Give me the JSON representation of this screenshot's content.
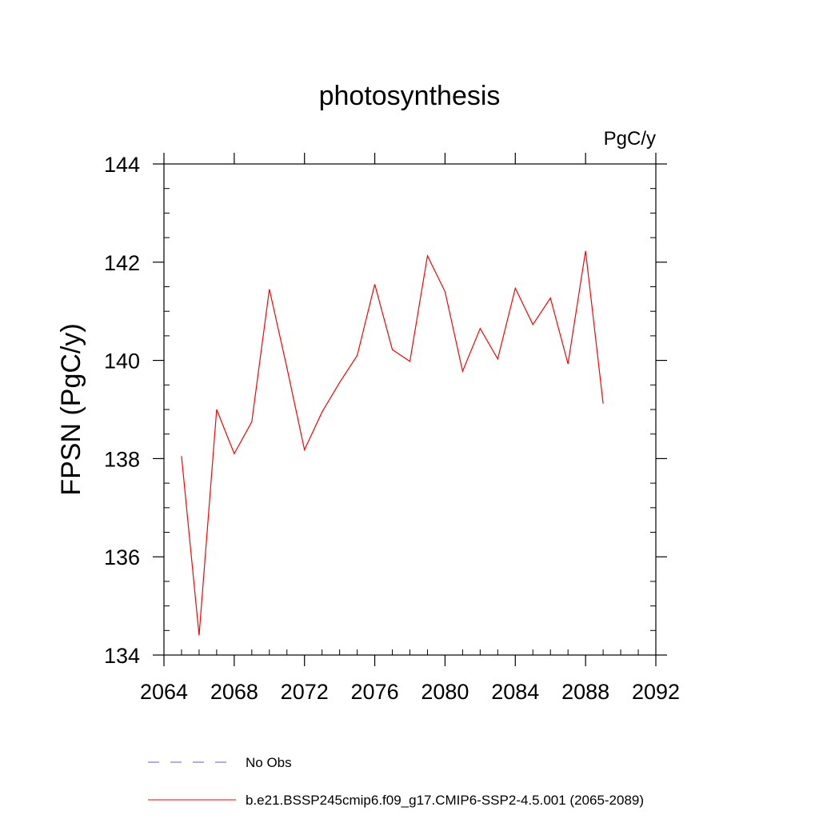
{
  "chart_data": {
    "type": "line",
    "title": "photosynthesis",
    "units_label": "PgC/y",
    "xlabel": "",
    "ylabel": "FPSN  (PgC/y)",
    "xlim": [
      2064,
      2092
    ],
    "ylim": [
      134,
      144
    ],
    "x_ticks": [
      "2064",
      "2068",
      "2072",
      "2076",
      "2080",
      "2084",
      "2088",
      "2092"
    ],
    "y_ticks": [
      "134",
      "136",
      "138",
      "140",
      "142",
      "144"
    ],
    "x": [
      2065,
      2066,
      2067,
      2068,
      2069,
      2070,
      2071,
      2072,
      2073,
      2074,
      2075,
      2076,
      2077,
      2078,
      2079,
      2080,
      2081,
      2082,
      2083,
      2084,
      2085,
      2086,
      2087,
      2088,
      2089
    ],
    "series": [
      {
        "name": "b.e21.BSSP245cmip6.f09_g17.CMIP6-SSP2-4.5.001 (2065-2089)",
        "color": "#ff0000",
        "values": [
          138.05,
          134.4,
          139.0,
          138.1,
          138.75,
          141.45,
          139.85,
          138.18,
          138.95,
          139.55,
          140.1,
          141.55,
          140.22,
          139.98,
          142.13,
          141.4,
          139.78,
          140.65,
          140.03,
          141.47,
          140.73,
          141.27,
          139.93,
          142.23,
          139.12
        ]
      }
    ],
    "legend": [
      {
        "label": "No Obs",
        "color": "#6a5acd",
        "style": "dashed"
      },
      {
        "label": "b.e21.BSSP245cmip6.f09_g17.CMIP6-SSP2-4.5.001 (2065-2089)",
        "color": "#ff0000",
        "style": "solid"
      }
    ],
    "legend_position": "bottom",
    "grid": false
  }
}
